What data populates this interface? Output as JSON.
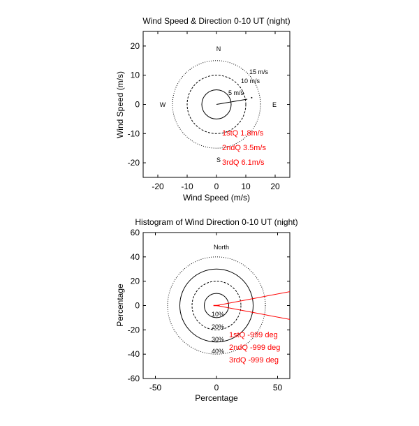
{
  "chart_data": [
    {
      "type": "polar-scatter",
      "title": "Wind Speed & Direction 0-10 UT (night)",
      "xlabel": "Wind Speed (m/s)",
      "ylabel": "Wind Speed (m/s)",
      "xlim": [
        -25,
        25
      ],
      "ylim": [
        -25,
        25
      ],
      "xticks": [
        -20,
        -10,
        0,
        10,
        20
      ],
      "yticks": [
        -20,
        -10,
        0,
        10,
        20
      ],
      "rings": [
        {
          "radius": 5,
          "label": "5 m/s",
          "style": "solid"
        },
        {
          "radius": 10,
          "label": "10 m/s",
          "style": "dashed"
        },
        {
          "radius": 15,
          "label": "15 m/s",
          "style": "dotted"
        }
      ],
      "compass": {
        "north": "N",
        "south": "S",
        "east": "E",
        "west": "W"
      },
      "vector": {
        "x": [
          0,
          10.5
        ],
        "y": [
          0,
          1.8
        ]
      },
      "point": {
        "x": 12,
        "y": 2.3
      },
      "annotations": [
        "1stQ 1.8m/s",
        "2ndQ 3.5m/s",
        "3rdQ 6.1m/s"
      ],
      "annotation_color": "#ff0000"
    },
    {
      "type": "polar-histogram",
      "title": "Histogram of Wind Direction 0-10 UT (night)",
      "xlabel": "Percentage",
      "ylabel": "Percentage",
      "xlim": [
        -60,
        60
      ],
      "ylim": [
        -60,
        60
      ],
      "xticks": [
        -50,
        0,
        50
      ],
      "yticks": [
        -60,
        -40,
        -20,
        0,
        20,
        40,
        60
      ],
      "rings": [
        {
          "radius": 10,
          "label": "10%",
          "style": "solid"
        },
        {
          "radius": 20,
          "label": "20%",
          "style": "dashed"
        },
        {
          "radius": 30,
          "label": "30%",
          "style": "solid"
        },
        {
          "radius": 40,
          "label": "40%",
          "style": "dotted"
        }
      ],
      "compass": {
        "north": "North"
      },
      "wedge": {
        "x1": 63,
        "y1": 12,
        "x2": 63,
        "y2": -12
      },
      "annotations": [
        "1stQ -999 deg",
        "2ndQ -999 deg",
        "3rdQ -999 deg"
      ],
      "annotation_color": "#ff0000"
    }
  ]
}
